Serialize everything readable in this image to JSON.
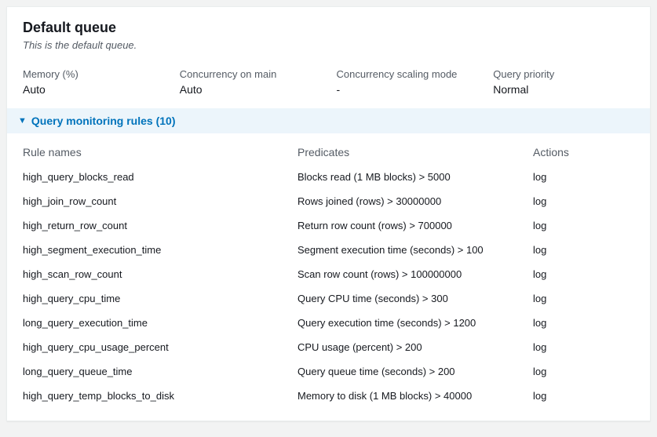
{
  "header": {
    "title": "Default queue",
    "subtitle": "This is the default queue."
  },
  "properties": [
    {
      "label": "Memory (%)",
      "value": "Auto"
    },
    {
      "label": "Concurrency on main",
      "value": "Auto"
    },
    {
      "label": "Concurrency scaling mode",
      "value": "-"
    },
    {
      "label": "Query priority",
      "value": "Normal"
    }
  ],
  "rules_section": {
    "title": "Query monitoring rules (10)"
  },
  "rules_columns": {
    "name": "Rule names",
    "predicate": "Predicates",
    "action": "Actions"
  },
  "rules": [
    {
      "name": "high_query_blocks_read",
      "predicate": "Blocks read (1 MB blocks) > 5000",
      "action": "log"
    },
    {
      "name": "high_join_row_count",
      "predicate": "Rows joined (rows) > 30000000",
      "action": "log"
    },
    {
      "name": "high_return_row_count",
      "predicate": "Return row count (rows) > 700000",
      "action": "log"
    },
    {
      "name": "high_segment_execution_time",
      "predicate": "Segment execution time (seconds) > 100",
      "action": "log"
    },
    {
      "name": "high_scan_row_count",
      "predicate": "Scan row count (rows) > 100000000",
      "action": "log"
    },
    {
      "name": "high_query_cpu_time",
      "predicate": "Query CPU time (seconds) > 300",
      "action": "log"
    },
    {
      "name": "long_query_execution_time",
      "predicate": "Query execution time (seconds) > 1200",
      "action": "log"
    },
    {
      "name": "high_query_cpu_usage_percent",
      "predicate": "CPU usage (percent) > 200",
      "action": "log"
    },
    {
      "name": "long_query_queue_time",
      "predicate": "Query queue time (seconds) > 200",
      "action": "log"
    },
    {
      "name": "high_query_temp_blocks_to_disk",
      "predicate": "Memory to disk (1 MB blocks) > 40000",
      "action": "log"
    }
  ]
}
